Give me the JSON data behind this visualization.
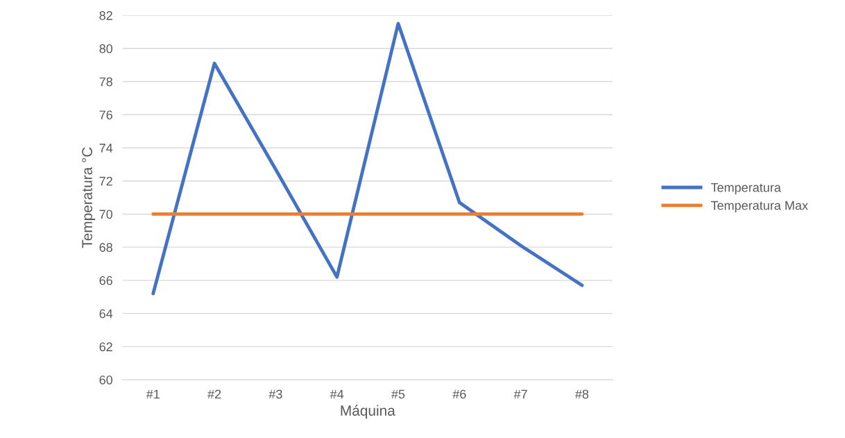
{
  "chart_data": {
    "type": "line",
    "xlabel": "Máquina",
    "ylabel": "Temperatura °C",
    "categories": [
      "#1",
      "#2",
      "#3",
      "#4",
      "#5",
      "#6",
      "#7",
      "#8"
    ],
    "series": [
      {
        "name": "Temperatura",
        "color": "#4472c4",
        "values": [
          65.2,
          79.1,
          72.7,
          66.2,
          81.5,
          70.7,
          68.1,
          65.7
        ]
      },
      {
        "name": "Temperatura Max",
        "color": "#ed7d31",
        "values": [
          70,
          70,
          70,
          70,
          70,
          70,
          70,
          70
        ]
      }
    ],
    "ylim": [
      60,
      82
    ],
    "yticks": [
      60,
      62,
      64,
      66,
      68,
      70,
      72,
      74,
      76,
      78,
      80,
      82
    ],
    "grid": "y",
    "legend": "right",
    "marker": "none",
    "line_style": "solid"
  }
}
